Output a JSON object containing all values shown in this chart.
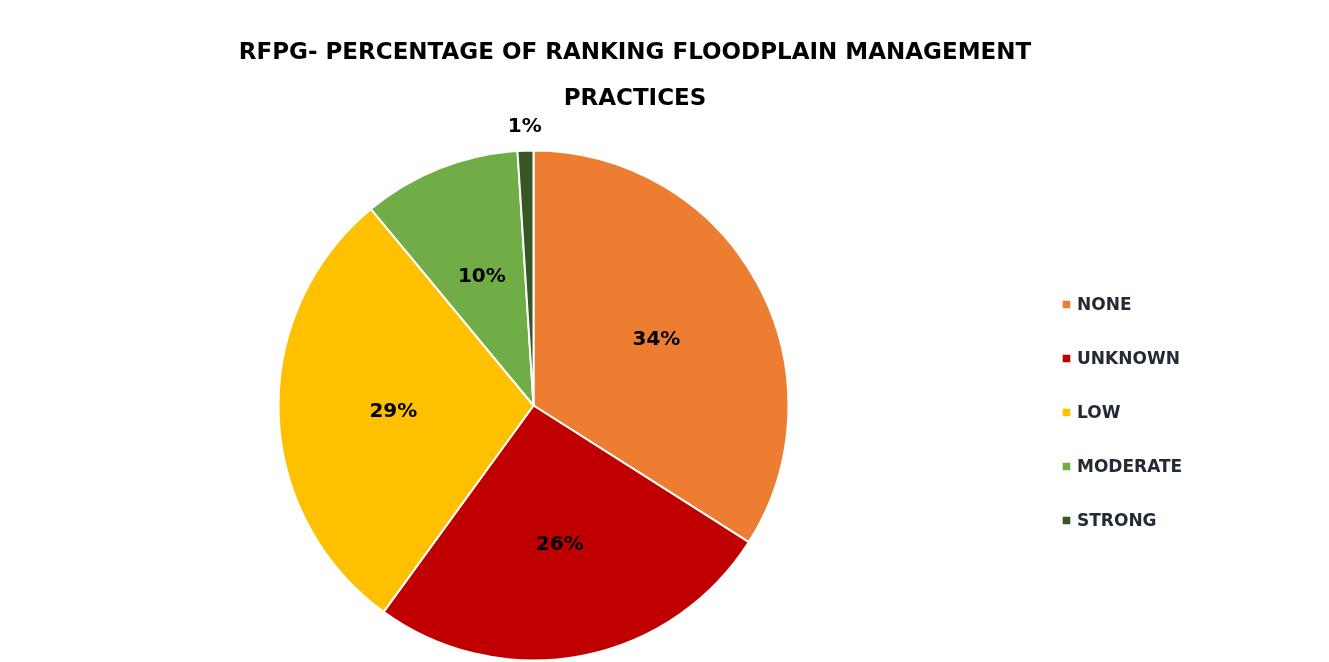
{
  "chart_data": {
    "type": "pie",
    "title": "RFPG- PERCENTAGE OF RANKING FLOODPLAIN MANAGEMENT PRACTICES",
    "categories": [
      "NONE",
      "UNKNOWN",
      "LOW",
      "MODERATE",
      "STRONG"
    ],
    "values": [
      34,
      26,
      29,
      10,
      1
    ],
    "colors": [
      "#ed7d31",
      "#c00000",
      "#ffc000",
      "#70ad47",
      "#375623"
    ],
    "value_labels": [
      "34%",
      "26%",
      "29%",
      "10%",
      "1%"
    ],
    "legend": "right"
  }
}
